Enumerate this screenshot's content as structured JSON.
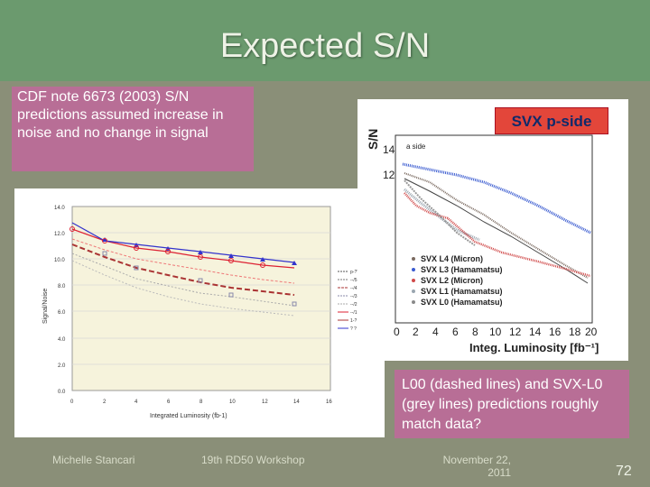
{
  "slide": {
    "title": "Expected S/N",
    "note_left": "CDF note 6673 (2003) S/N predictions assumed increase in noise and no change in signal",
    "note_right": "L00 (dashed lines) and SVX-L0 (grey lines) predictions roughly match data?",
    "footer_left": "Michelle Stancari",
    "footer_center": "19th RD50 Workshop",
    "footer_date_line1": "November 22,",
    "footer_date_line2": "2011",
    "page_number": "72"
  },
  "left_plot": {
    "ylabel": "Signal/Noise",
    "xlabel": "Integrated Luminosity (fb-1)",
    "y_ticks": [
      "14.0",
      "12.0",
      "10.0",
      "8.0",
      "6.0",
      "4.0",
      "2.0",
      "0.0"
    ],
    "x_ticks": [
      "0",
      "2",
      "4",
      "6",
      "8",
      "10",
      "12",
      "14",
      "16"
    ],
    "legend": [
      "p-??",
      "--/5",
      "--/4",
      "--/3",
      "--/2",
      "--/1",
      "1-?",
      "? ?"
    ]
  },
  "right_plot": {
    "svx_label": "SVX  p-side",
    "ylabel": "S/N",
    "y_ticks": [
      "14",
      "12"
    ],
    "x_ticks": [
      "0",
      "2",
      "4",
      "6",
      "8",
      "10",
      "12",
      "14",
      "16",
      "18",
      "20"
    ],
    "xlabel": "Integ. Luminosity [fb⁻¹]",
    "legend": [
      {
        "label": "SVX L4 (Micron)",
        "color": "#7a6a60"
      },
      {
        "label": "SVX L3 (Hamamatsu)",
        "color": "#3a5bd0"
      },
      {
        "label": "SVX L2 (Micron)",
        "color": "#d04a4a"
      },
      {
        "label": "SVX L1 (Hamamatsu)",
        "color": "#9aa6b0"
      },
      {
        "label": "SVX L0 (Hamamatsu)",
        "color": "#8a8a8a"
      }
    ],
    "small_label": "a side"
  }
}
